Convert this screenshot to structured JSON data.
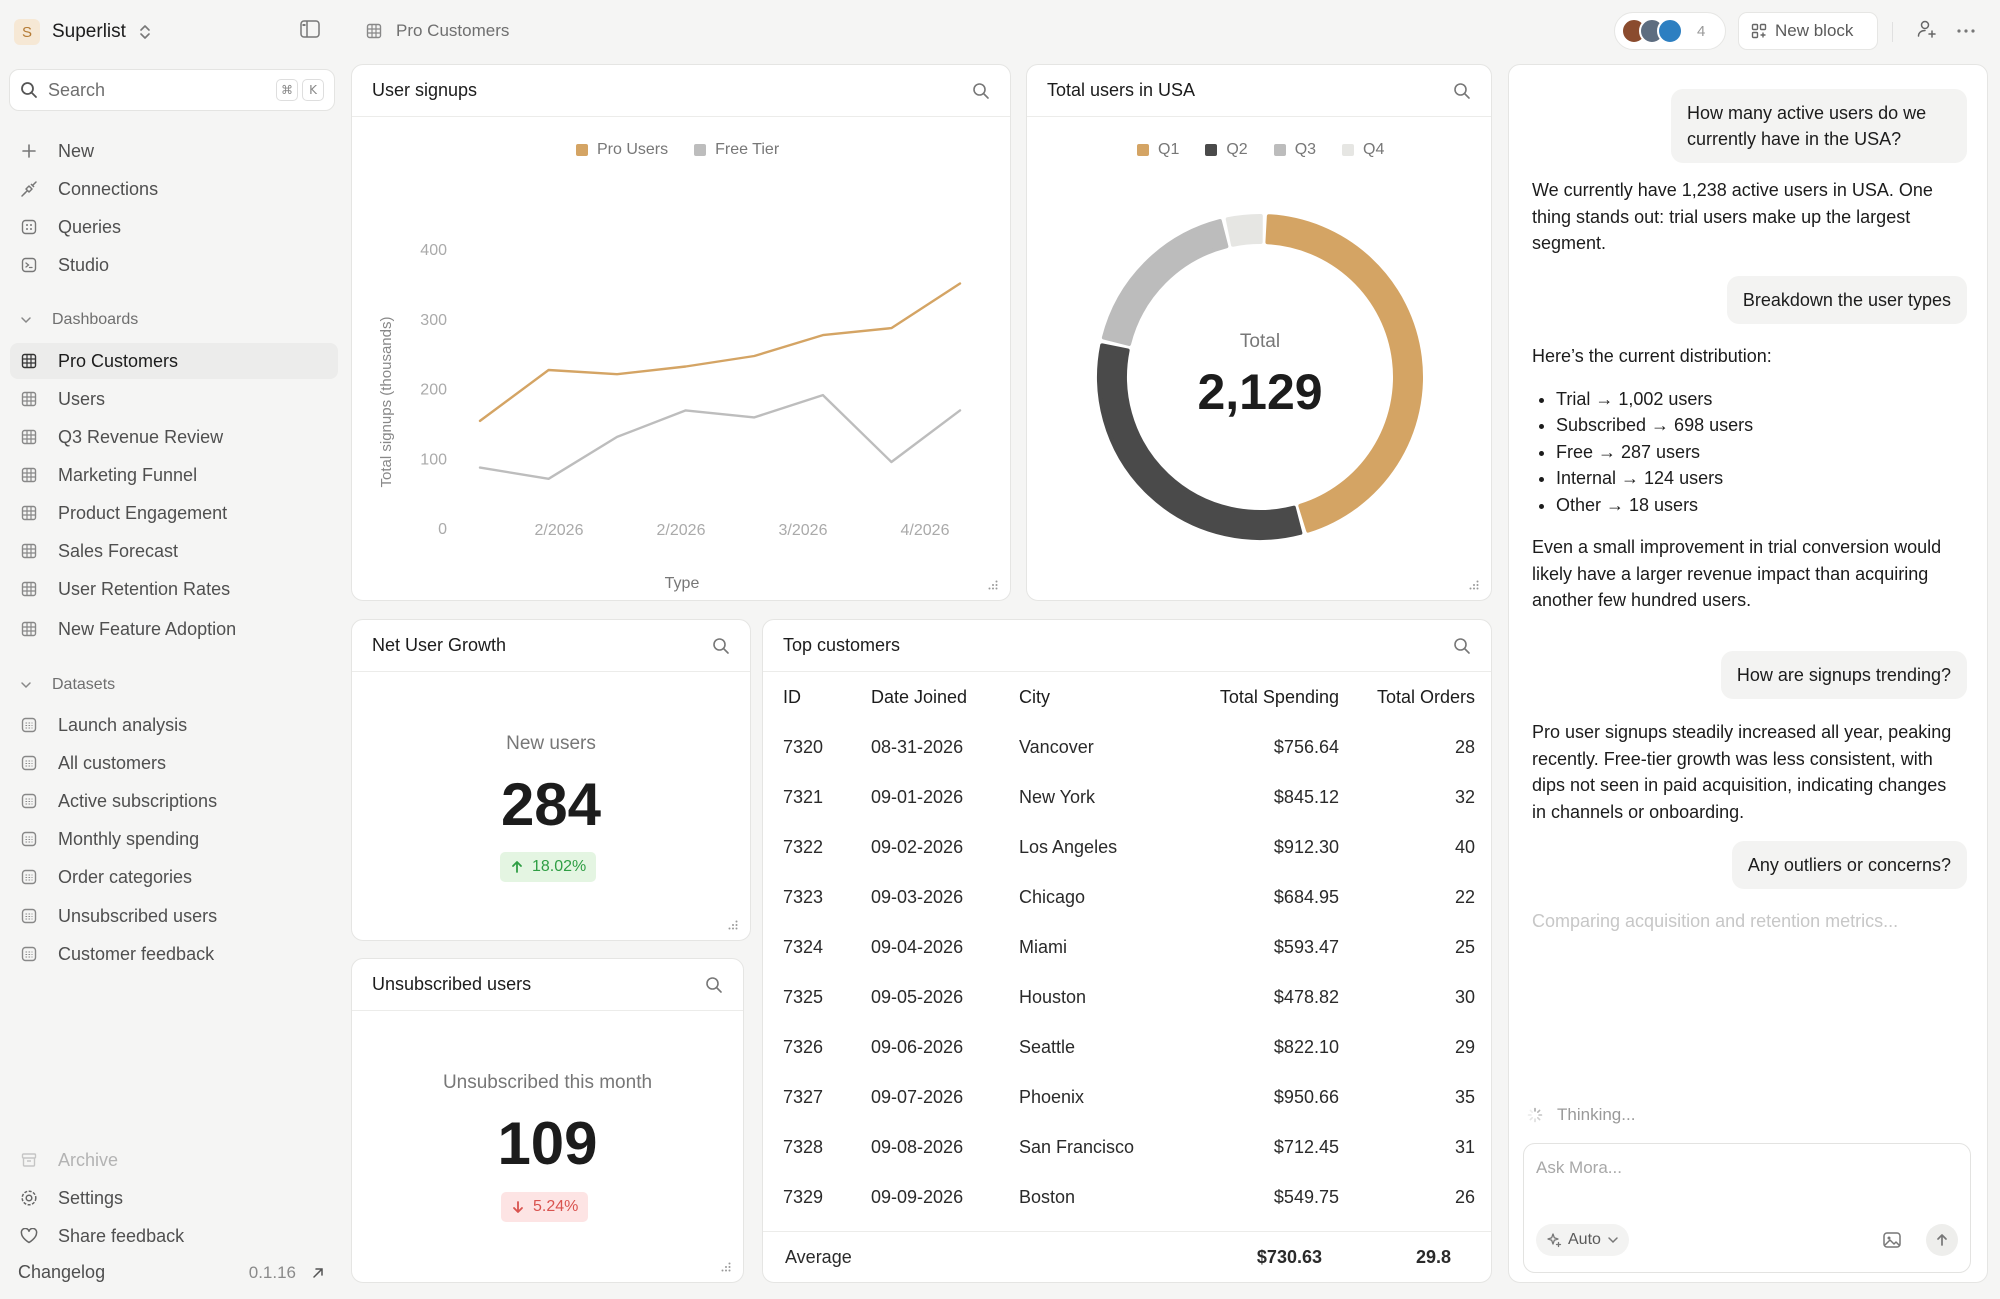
{
  "workspace": {
    "initial": "S",
    "name": "Superlist"
  },
  "sidebar": {
    "search_label": "Search",
    "search_keys": [
      "⌘",
      "K"
    ],
    "top_items": [
      {
        "label": "New",
        "icon": "plus-icon"
      },
      {
        "label": "Connections",
        "icon": "plug-icon"
      },
      {
        "label": "Queries",
        "icon": "query-icon"
      },
      {
        "label": "Studio",
        "icon": "terminal-icon"
      }
    ],
    "dashboards_label": "Dashboards",
    "dashboards": [
      {
        "label": "Pro Customers",
        "active": true
      },
      {
        "label": "Users"
      },
      {
        "label": "Q3 Revenue Review"
      },
      {
        "label": "Marketing Funnel"
      },
      {
        "label": "Product Engagement"
      },
      {
        "label": "Sales Forecast"
      },
      {
        "label": "User Retention Rates"
      },
      {
        "label": "New Feature Adoption"
      }
    ],
    "datasets_label": "Datasets",
    "datasets": [
      {
        "label": "Launch analysis"
      },
      {
        "label": "All customers"
      },
      {
        "label": "Active subscriptions"
      },
      {
        "label": "Monthly spending"
      },
      {
        "label": "Order categories"
      },
      {
        "label": "Unsubscribed users"
      },
      {
        "label": "Customer feedback"
      }
    ],
    "bottom_items": [
      {
        "label": "Archive",
        "icon": "archive-icon"
      },
      {
        "label": "Settings",
        "icon": "gear-icon"
      },
      {
        "label": "Share feedback",
        "icon": "heart-icon"
      }
    ],
    "changelog_label": "Changelog",
    "version": "0.1.16"
  },
  "topbar": {
    "breadcrumb": "Pro Customers",
    "collaborator_count": "4",
    "new_block_label": "New block"
  },
  "signups_card": {
    "title": "User signups",
    "chart_data": {
      "type": "line",
      "title": "User signups",
      "xlabel": "Type",
      "ylabel": "Total signups (thousands)",
      "ylim": [
        0,
        400
      ],
      "y_ticks": [
        "400",
        "300",
        "200",
        "100",
        "0"
      ],
      "x_ticks": [
        "2/2026",
        "2/2026",
        "3/2026",
        "4/2026"
      ],
      "legend_position": "top-center",
      "series": [
        {
          "name": "Pro Users",
          "color": "#d4a464",
          "values": [
            155,
            228,
            222,
            233,
            248,
            278,
            288,
            352
          ]
        },
        {
          "name": "Free Tier",
          "color": "#bdbdbd",
          "values": [
            88,
            72,
            132,
            170,
            160,
            192,
            96,
            170
          ]
        }
      ]
    }
  },
  "usa_card": {
    "title": "Total users in USA",
    "total_label": "Total",
    "total_value": "2,129",
    "chart_data": {
      "type": "pie",
      "title": "Total users in USA",
      "legend_position": "top-center",
      "categories": [
        "Q1",
        "Q2",
        "Q3",
        "Q4"
      ],
      "values": [
        960,
        702,
        380,
        87
      ],
      "colors": [
        "#d4a464",
        "#4a4a4a",
        "#bcbcbc",
        "#e6e6e3"
      ]
    }
  },
  "net_growth_card": {
    "title": "Net User Growth",
    "label": "New users",
    "value": "284",
    "change": "18.02%"
  },
  "unsub_card": {
    "title": "Unsubscribed users",
    "label": "Unsubscribed this month",
    "value": "109",
    "change": "5.24%"
  },
  "customers_card": {
    "title": "Top customers",
    "columns": [
      "ID",
      "Date Joined",
      "City",
      "Total Spending",
      "Total Orders"
    ],
    "rows": [
      [
        "7320",
        "08-31-2026",
        "Vancover",
        "$756.64",
        "28"
      ],
      [
        "7321",
        "09-01-2026",
        "New York",
        "$845.12",
        "32"
      ],
      [
        "7322",
        "09-02-2026",
        "Los Angeles",
        "$912.30",
        "40"
      ],
      [
        "7323",
        "09-03-2026",
        "Chicago",
        "$684.95",
        "22"
      ],
      [
        "7324",
        "09-04-2026",
        "Miami",
        "$593.47",
        "25"
      ],
      [
        "7325",
        "09-05-2026",
        "Houston",
        "$478.82",
        "30"
      ],
      [
        "7326",
        "09-06-2026",
        "Seattle",
        "$822.10",
        "29"
      ],
      [
        "7327",
        "09-07-2026",
        "Phoenix",
        "$950.66",
        "35"
      ],
      [
        "7328",
        "09-08-2026",
        "San Francisco",
        "$712.45",
        "31"
      ],
      [
        "7329",
        "09-09-2026",
        "Boston",
        "$549.75",
        "26"
      ]
    ],
    "footer": {
      "label": "Average",
      "spending": "$730.63",
      "orders": "29.8"
    }
  },
  "chat": {
    "q1": "How many active users do we currently have in the USA?",
    "a1": "We currently have 1,238 active users in USA. One thing stands out: trial users make up the largest segment.",
    "q2": "Breakdown the user types",
    "a2_intro": "Here’s the current distribution:",
    "a2_items": [
      "Trial → 1,002 users",
      "Subscribed → 698 users",
      "Free → 287 users",
      "Internal → 124 users",
      "Other → 18 users"
    ],
    "a2_outro": "Even a small improvement in trial conversion would likely have a larger revenue impact than acquiring another few hundred users.",
    "q3": "How are signups trending?",
    "a3": "Pro user signups steadily increased all year, peaking recently. Free-tier growth was less consistent, with dips not seen in paid acquisition, indicating changes in channels or onboarding.",
    "q4": "Any outliers or concerns?",
    "pending": "Comparing acquisition and retention metrics...",
    "thinking": "Thinking...",
    "input_placeholder": "Ask Mora...",
    "mode_label": "Auto"
  }
}
